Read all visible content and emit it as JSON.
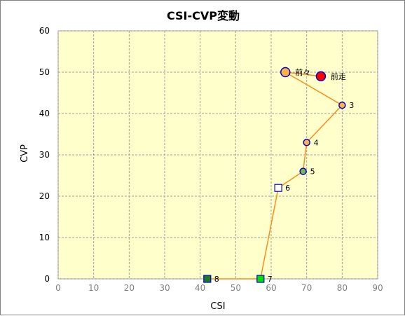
{
  "chart_data": {
    "type": "scatter",
    "title": "CSI-CVP変動",
    "xlabel": "CSI",
    "ylabel": "CVP",
    "xlim": [
      0,
      90
    ],
    "ylim": [
      0,
      60
    ],
    "xticks": [
      0,
      10,
      20,
      30,
      40,
      50,
      60,
      70,
      80,
      90
    ],
    "yticks": [
      0,
      10,
      20,
      30,
      40,
      50,
      60
    ],
    "grid": true,
    "plot_background": "#ffffcc",
    "grid_color": "#a0a0a0",
    "line_color": "#ff8c1a",
    "points": [
      {
        "label": "前走",
        "x": 74,
        "y": 49,
        "marker": "circle-large",
        "fill": "#ff0000",
        "stroke": "#0000cc"
      },
      {
        "label": "前々",
        "x": 64,
        "y": 50,
        "marker": "circle-large",
        "fill": "#ffb347",
        "stroke": "#0000cc"
      },
      {
        "label": "3",
        "x": 80,
        "y": 42,
        "marker": "circle",
        "fill": "#ffb347",
        "stroke": "#0000cc"
      },
      {
        "label": "4",
        "x": 70,
        "y": 33,
        "marker": "circle",
        "fill": "#ffb347",
        "stroke": "#0000cc"
      },
      {
        "label": "5",
        "x": 69,
        "y": 26,
        "marker": "circle",
        "fill": "#7db84a",
        "stroke": "#0000cc"
      },
      {
        "label": "6",
        "x": 62,
        "y": 22,
        "marker": "square",
        "fill": "#ffffff",
        "stroke": "#0000cc"
      },
      {
        "label": "7",
        "x": 57,
        "y": 0,
        "marker": "square",
        "fill": "#00dd00",
        "stroke": "#0000cc"
      },
      {
        "label": "8",
        "x": 42,
        "y": 0,
        "marker": "square",
        "fill": "#1e7a1e",
        "stroke": "#0000cc"
      }
    ]
  }
}
